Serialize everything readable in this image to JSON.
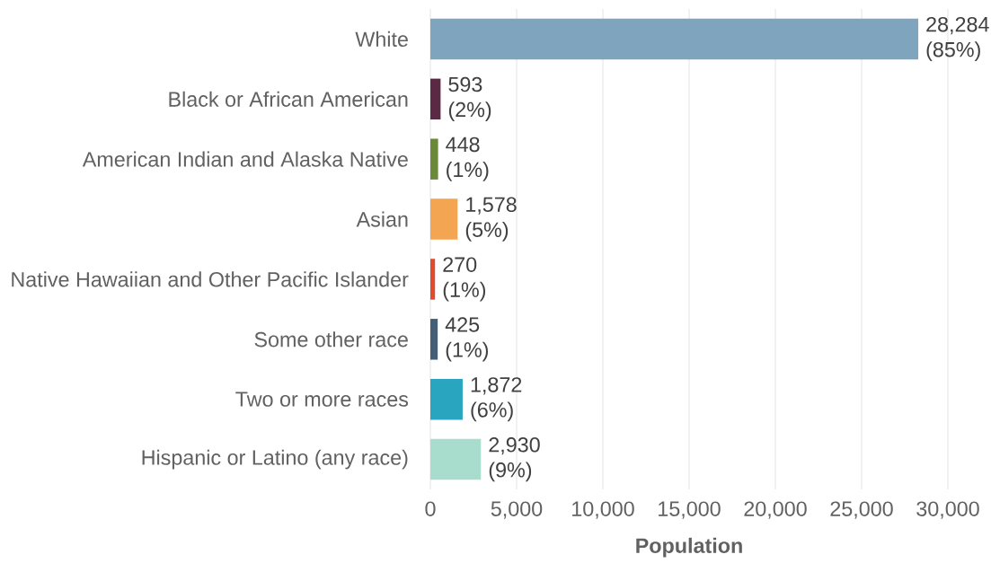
{
  "chart_data": {
    "type": "bar",
    "orientation": "horizontal",
    "xlabel": "Population",
    "categories": [
      "White",
      "Black or African American",
      "American Indian and Alaska Native",
      "Asian",
      "Native Hawaiian and Other Pacific Islander",
      "Some other race",
      "Two or more races",
      "Hispanic or Latino (any race)"
    ],
    "values": [
      28284,
      593,
      448,
      1578,
      270,
      425,
      1872,
      2930
    ],
    "colors": [
      "#7fa4bd",
      "#5a2a45",
      "#6a8a3a",
      "#f4a552",
      "#e24a2e",
      "#435e75",
      "#29a5bf",
      "#a8dccd"
    ],
    "value_labels": [
      "28,284 (85%)",
      "593 (2%)",
      "448 (1%)",
      "1,578 (5%)",
      "270 (1%)",
      "425 (1%)",
      "1,872 (6%)",
      "2,930 (9%)"
    ],
    "xlim": [
      0,
      30000
    ],
    "xticks": [
      0,
      {
        "value": 5000,
        "label": "5,000"
      },
      {
        "value": 10000,
        "label": "10,000"
      },
      {
        "value": 15000,
        "label": "15,000"
      },
      {
        "value": 20000,
        "label": "20,000"
      },
      {
        "value": 25000,
        "label": "25,000"
      },
      {
        "value": 30000,
        "label": "30,000"
      }
    ],
    "grid": "x"
  }
}
